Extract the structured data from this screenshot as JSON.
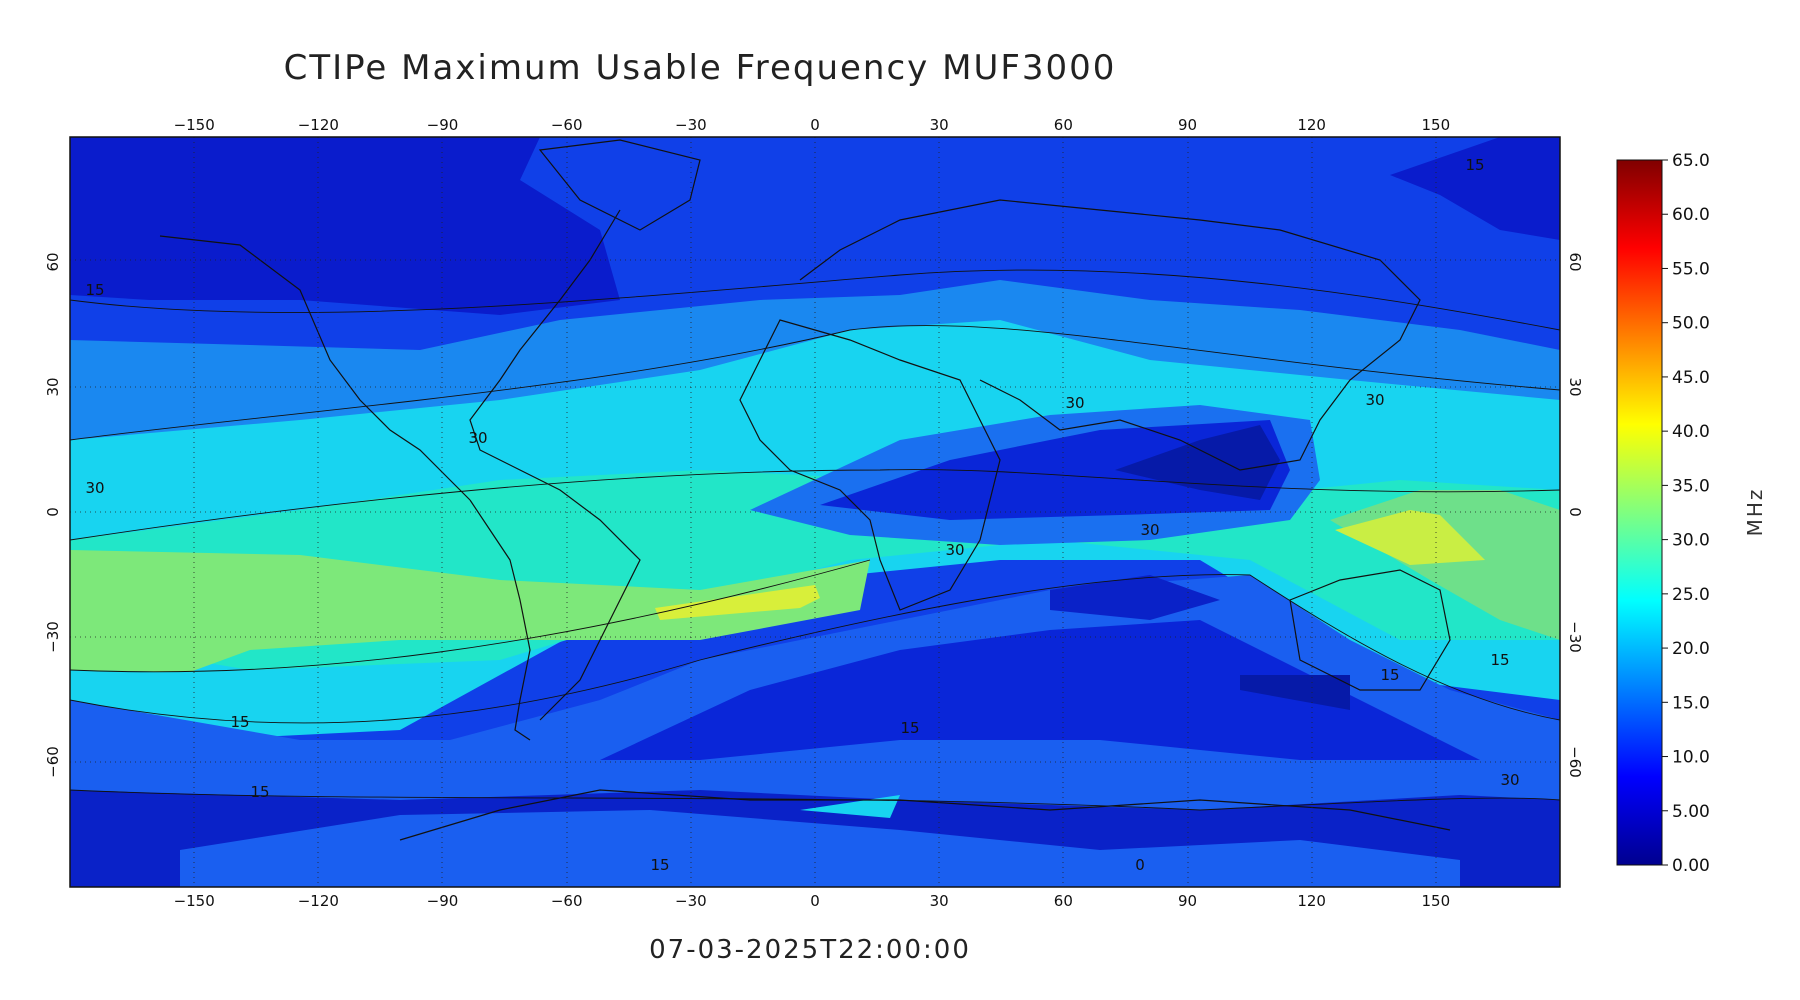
{
  "title": "CTIPe Maximum Usable Frequency MUF3000",
  "timestamp": "07-03-2025T22:00:00",
  "map": {
    "projection": "equirectangular",
    "lon_ticks": [
      "-150",
      "-120",
      "-90",
      "-60",
      "-30",
      "0",
      "30",
      "60",
      "90",
      "120",
      "150"
    ],
    "lat_ticks": [
      "60",
      "30",
      "0",
      "-30",
      "-60"
    ],
    "grid": "dotted",
    "contour_labels": [
      "15",
      "15",
      "30",
      "30",
      "30",
      "30",
      "30",
      "30",
      "15",
      "15",
      "15",
      "15",
      "15",
      "15",
      "0",
      "30"
    ]
  },
  "colorbar": {
    "unit": "MHz",
    "min": 0,
    "max": 65,
    "ticks": [
      "65.0",
      "60.0",
      "55.0",
      "50.0",
      "45.0",
      "40.0",
      "35.0",
      "30.0",
      "25.0",
      "20.0",
      "15.0",
      "10.0",
      "5.00",
      "0.00"
    ],
    "colormap": "jet"
  }
}
